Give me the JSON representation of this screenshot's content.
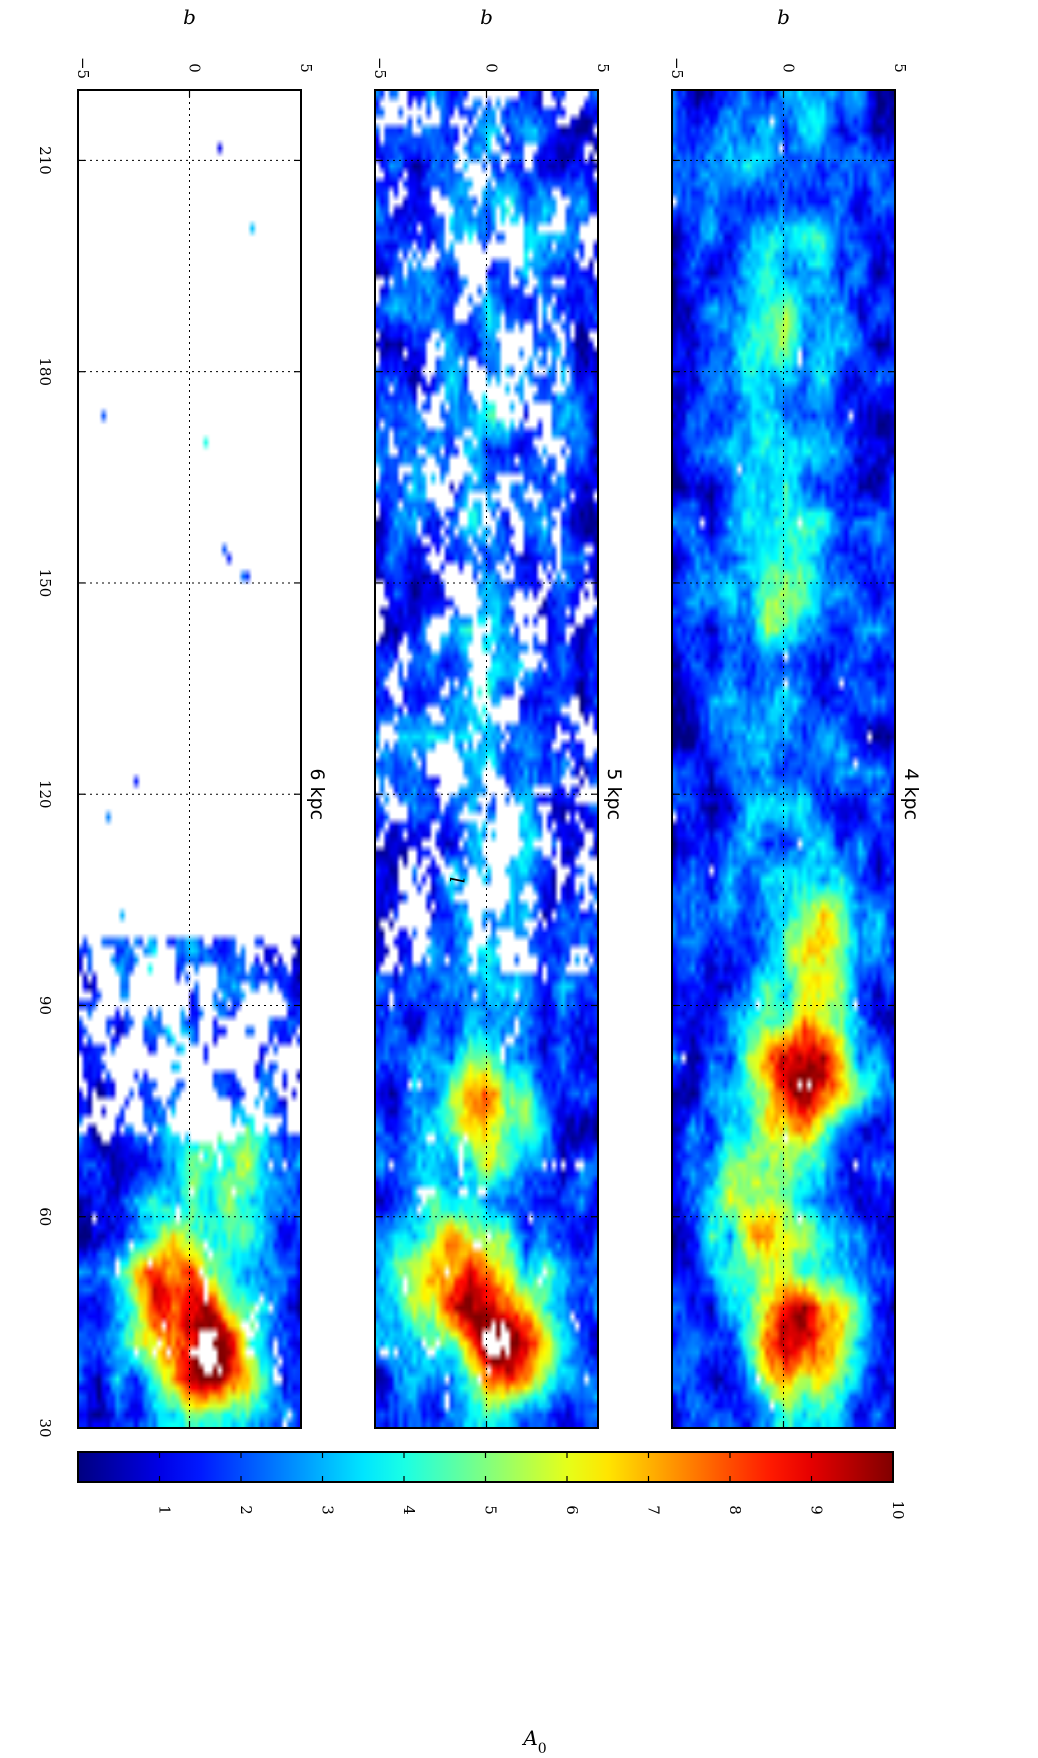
{
  "chart_data": {
    "type": "heatmap",
    "colormap": "jet",
    "colorbar": {
      "label": "A0",
      "range": [
        0,
        10
      ],
      "ticks": [
        1,
        2,
        3,
        4,
        5,
        6,
        7,
        8,
        9,
        10
      ],
      "colors": [
        "#00007f",
        "#0000ff",
        "#007fff",
        "#00ffff",
        "#7fff7f",
        "#ffff00",
        "#ff7f00",
        "#ff0000",
        "#7f0000"
      ]
    },
    "xaxis": {
      "label": "l",
      "range": [
        30,
        220
      ],
      "ticks": [
        210,
        180,
        150,
        120,
        90,
        60,
        30
      ]
    },
    "yaxis": {
      "label": "b",
      "range": [
        -5,
        5
      ],
      "ticks": [
        -5,
        0,
        5
      ]
    },
    "grid": true,
    "panels": [
      {
        "annotation": "4 kpc",
        "features": [
          {
            "l": 43,
            "b": 1,
            "A0": 9
          },
          {
            "l": 80,
            "b": 1,
            "A0": 9
          },
          {
            "l": 62,
            "b": -1,
            "A0": 6
          },
          {
            "l": 100,
            "b": 2,
            "A0": 5
          },
          {
            "l": 150,
            "b": 0,
            "A0": 4
          },
          {
            "l": 185,
            "b": -1,
            "A0": 3
          },
          {
            "l": 200,
            "b": 2,
            "A0": 2
          }
        ]
      },
      {
        "annotation": "5 kpc",
        "features": [
          {
            "l": 43,
            "b": 1,
            "A0": 9
          },
          {
            "l": 52,
            "b": -2,
            "A0": 7
          },
          {
            "l": 75,
            "b": 0,
            "A0": 6
          },
          {
            "l": 100,
            "b": -2,
            "A0": 2
          },
          {
            "l": 130,
            "b": -3,
            "A0": 1.5
          },
          {
            "l": 175,
            "b": 1,
            "A0": 1.5
          },
          {
            "l": 205,
            "b": 2,
            "A0": 1.5
          }
        ]
      },
      {
        "annotation": "6 kpc",
        "features": [
          {
            "l": 40,
            "b": 1,
            "A0": 9
          },
          {
            "l": 50,
            "b": -1,
            "A0": 7
          },
          {
            "l": 65,
            "b": 2,
            "A0": 4
          },
          {
            "l": 75,
            "b": 3,
            "A0": 1.5
          },
          {
            "l": 100,
            "b": -3,
            "A0": 1.5
          },
          {
            "l": 210,
            "b": 4,
            "A0": 1.5
          }
        ]
      }
    ]
  }
}
